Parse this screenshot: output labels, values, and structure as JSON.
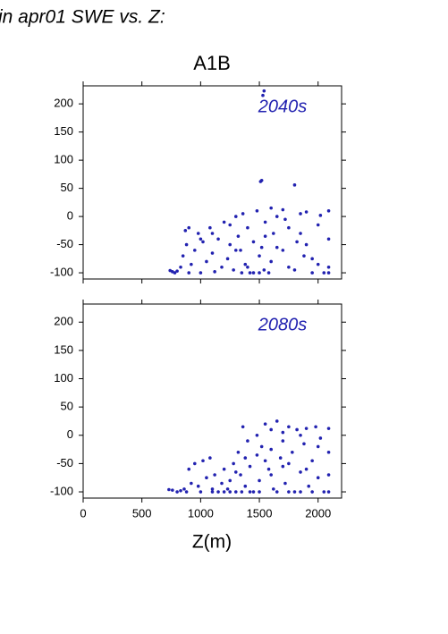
{
  "title": "in apr01 SWE vs. Z:",
  "scenario": "A1B",
  "chart_data": [
    {
      "type": "scatter",
      "annotation": "2040s",
      "color": "#2222b0",
      "xtick_labels": false,
      "xlim": [
        0,
        2200
      ],
      "ylim": [
        -111,
        232
      ],
      "xticks": [
        0,
        500,
        1000,
        1500,
        2000
      ],
      "yticks": [
        -100,
        -50,
        0,
        50,
        100,
        150,
        200
      ],
      "x": [
        740,
        760,
        780,
        800,
        830,
        850,
        870,
        880,
        900,
        920,
        950,
        980,
        1000,
        1020,
        1050,
        1080,
        1100,
        1120,
        1150,
        1180,
        1200,
        1230,
        1250,
        1280,
        1300,
        1320,
        1340,
        1360,
        1380,
        1400,
        1420,
        1450,
        1480,
        1500,
        1510,
        1520,
        1530,
        1540,
        1550,
        1600,
        1650,
        1700,
        1750,
        1800,
        1850,
        1900,
        1950,
        2000,
        2050,
        2090,
        2090,
        2090,
        1500,
        1550,
        1600,
        1650,
        1700,
        1750,
        1800,
        1850,
        1900,
        1950,
        2000,
        1520,
        1540,
        1820,
        1450,
        1400,
        1350,
        1300,
        1620,
        1720,
        1880,
        2020,
        1000,
        900,
        1100,
        1250,
        1580,
        2090
      ],
      "values": [
        -96,
        -98,
        -100,
        -97,
        -90,
        -70,
        -25,
        -50,
        -20,
        -85,
        -60,
        -30,
        -100,
        -45,
        -80,
        -20,
        -65,
        -98,
        -40,
        -90,
        -10,
        -75,
        -50,
        -95,
        0,
        -35,
        -60,
        5,
        -85,
        -20,
        -100,
        -45,
        10,
        -70,
        62,
        64,
        215,
        223,
        -10,
        15,
        -55,
        12,
        -90,
        56,
        -30,
        8,
        -75,
        -15,
        -100,
        10,
        -40,
        -90,
        -100,
        -35,
        -80,
        0,
        -60,
        -20,
        -95,
        5,
        -50,
        -100,
        -85,
        -55,
        -95,
        -45,
        -100,
        -90,
        -100,
        -60,
        -30,
        -5,
        -70,
        2,
        -40,
        -100,
        -30,
        -15,
        -100,
        -100
      ]
    },
    {
      "type": "scatter",
      "annotation": "2080s",
      "color": "#2222b0",
      "xtick_labels": true,
      "xlabel": "Z(m)",
      "xlim": [
        0,
        2200
      ],
      "ylim": [
        -111,
        232
      ],
      "xticks": [
        0,
        500,
        1000,
        1500,
        2000
      ],
      "yticks": [
        -100,
        -50,
        0,
        50,
        100,
        150,
        200
      ],
      "x": [
        730,
        760,
        800,
        830,
        860,
        880,
        900,
        920,
        950,
        980,
        1000,
        1020,
        1050,
        1080,
        1100,
        1120,
        1150,
        1180,
        1200,
        1230,
        1250,
        1280,
        1300,
        1320,
        1340,
        1360,
        1380,
        1400,
        1420,
        1450,
        1480,
        1500,
        1520,
        1550,
        1580,
        1600,
        1620,
        1650,
        1680,
        1700,
        1720,
        1750,
        1780,
        1800,
        1820,
        1850,
        1880,
        1900,
        1920,
        1950,
        1980,
        2000,
        2020,
        2050,
        2090,
        2090,
        2090,
        2090,
        1500,
        1550,
        1600,
        1650,
        1700,
        1750,
        1850,
        1950,
        2000,
        1420,
        1380,
        1300,
        1250,
        1600,
        1700,
        1900,
        1750,
        1350,
        1200,
        1100,
        1480,
        1850
      ],
      "values": [
        -96,
        -97,
        -100,
        -98,
        -95,
        -100,
        -60,
        -85,
        -50,
        -90,
        -100,
        -45,
        -75,
        -40,
        -95,
        -70,
        -100,
        -85,
        -60,
        -95,
        -80,
        -50,
        -100,
        -30,
        -70,
        15,
        -90,
        -10,
        -55,
        -100,
        0,
        -80,
        -20,
        20,
        -60,
        10,
        -95,
        25,
        -40,
        5,
        -85,
        15,
        -30,
        -100,
        10,
        -65,
        -15,
        12,
        -90,
        -45,
        15,
        -75,
        -5,
        -100,
        12,
        -30,
        -70,
        -100,
        -100,
        -45,
        -70,
        -100,
        -55,
        -100,
        -100,
        -100,
        -20,
        -100,
        -40,
        -65,
        -100,
        -25,
        -10,
        -60,
        -50,
        -100,
        -100,
        -100,
        -35,
        0
      ]
    }
  ]
}
